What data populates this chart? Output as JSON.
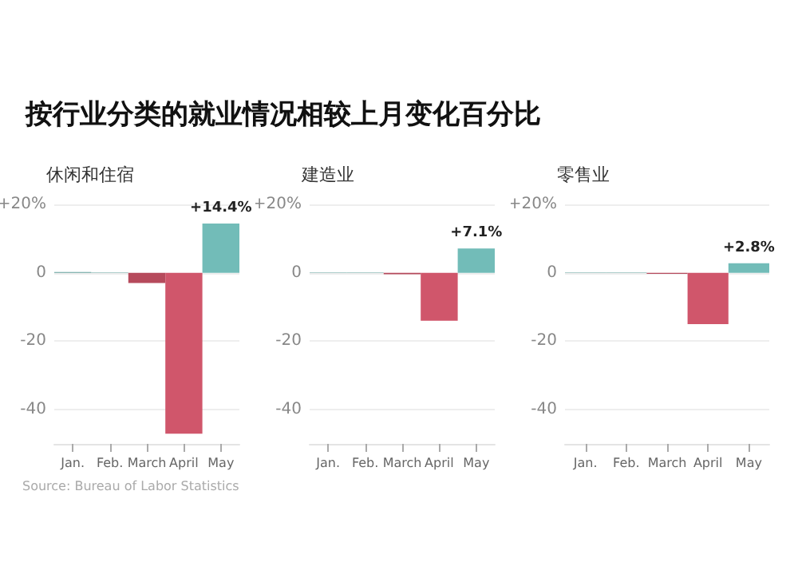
{
  "chart_data": [
    {
      "type": "other",
      "title": "按行业分类的就业情况相较上月变化百分比",
      "annotations": [
        "Source: Bureau of Labor Statistics"
      ]
    },
    {
      "type": "bar",
      "title": "休闲和住宿",
      "categories": [
        "Jan.",
        "Feb.",
        "March",
        "April",
        "May"
      ],
      "values": [
        0.2,
        0.1,
        -3,
        -47,
        14.4
      ],
      "colors": [
        "#5f9e9a",
        "#5f9e9a",
        "#b64a5c",
        "#d0566b",
        "#72bcb8"
      ],
      "value_labels": [
        null,
        null,
        null,
        null,
        "+14.4%"
      ],
      "ylim": [
        -50,
        20
      ],
      "yticks": [
        {
          "value": -40,
          "label": "-40"
        },
        {
          "value": -20,
          "label": "-20"
        },
        {
          "value": 0,
          "label": "0"
        },
        {
          "value": 20,
          "label": "+20%"
        }
      ],
      "grid": "y"
    },
    {
      "type": "bar",
      "title": "建造业",
      "categories": [
        "Jan.",
        "Feb.",
        "March",
        "April",
        "May"
      ],
      "values": [
        0.1,
        0.1,
        -0.4,
        -14,
        7.1
      ],
      "colors": [
        "#5f9e9a",
        "#5f9e9a",
        "#b64a5c",
        "#d0566b",
        "#72bcb8"
      ],
      "value_labels": [
        null,
        null,
        null,
        null,
        "+7.1%"
      ],
      "ylim": [
        -50,
        20
      ],
      "yticks": [
        {
          "value": -40,
          "label": "-40"
        },
        {
          "value": -20,
          "label": "-20"
        },
        {
          "value": 0,
          "label": "0"
        },
        {
          "value": 20,
          "label": "+20%"
        }
      ],
      "grid": "y"
    },
    {
      "type": "bar",
      "title": "零售业",
      "categories": [
        "Jan.",
        "Feb.",
        "March",
        "April",
        "May"
      ],
      "values": [
        0.1,
        0.1,
        -0.3,
        -15,
        2.8
      ],
      "colors": [
        "#5f9e9a",
        "#5f9e9a",
        "#b64a5c",
        "#d0566b",
        "#72bcb8"
      ],
      "value_labels": [
        null,
        null,
        null,
        null,
        "+2.8%"
      ],
      "ylim": [
        -50,
        20
      ],
      "yticks": [
        {
          "value": -40,
          "label": "-40"
        },
        {
          "value": -20,
          "label": "-20"
        },
        {
          "value": 0,
          "label": "0"
        },
        {
          "value": 20,
          "label": "+20%"
        }
      ],
      "grid": "y"
    }
  ]
}
